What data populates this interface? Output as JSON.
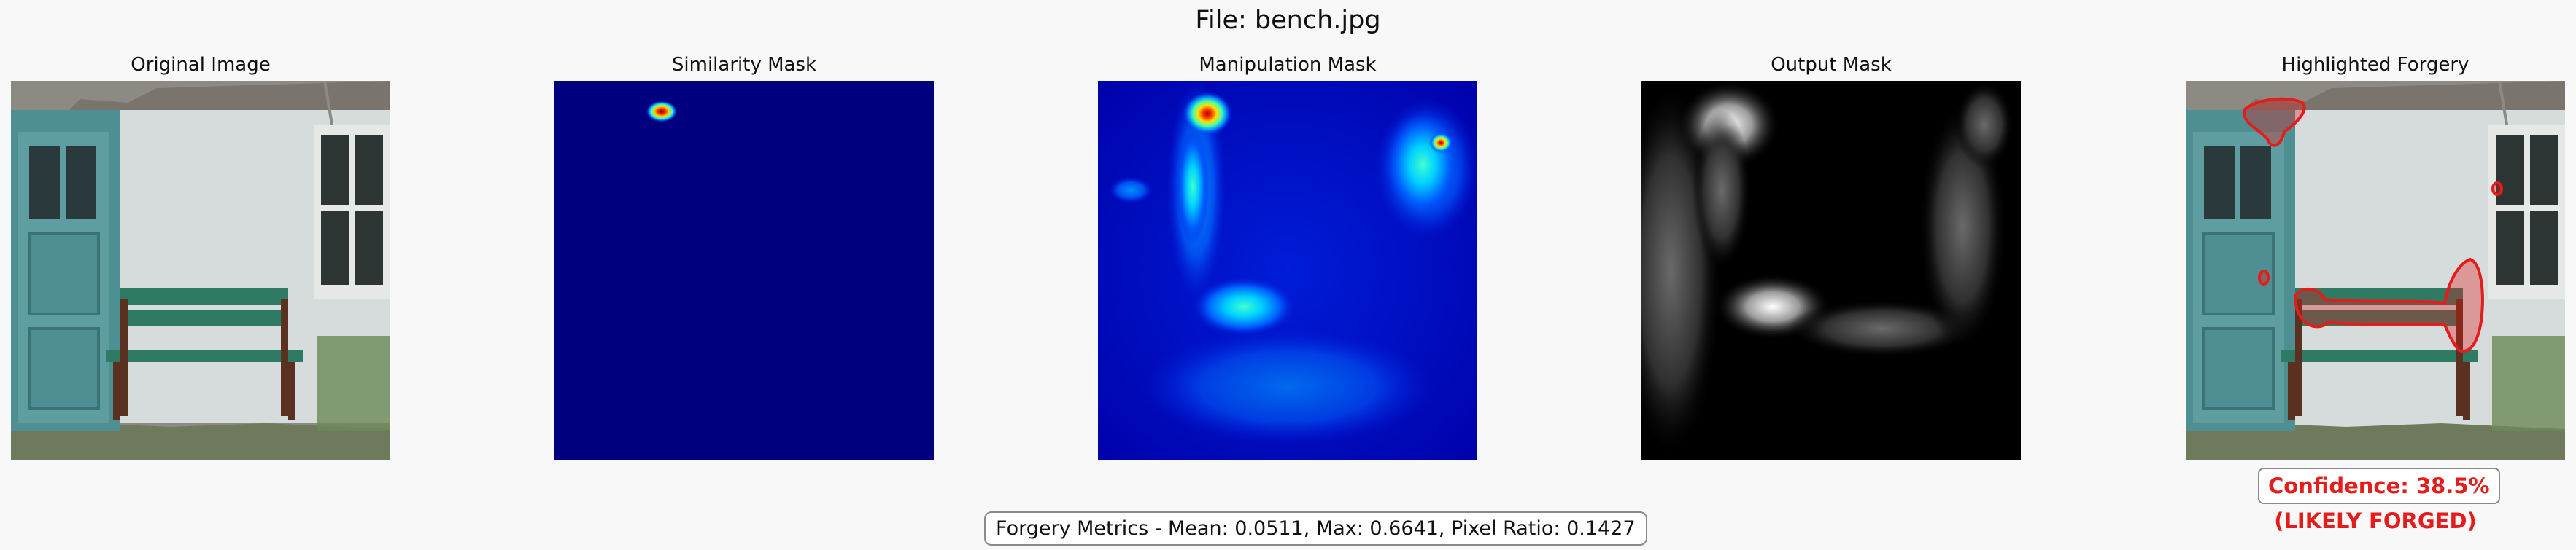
{
  "figure": {
    "title": "File: bench.jpg"
  },
  "panels": [
    {
      "title": "Original Image"
    },
    {
      "title": "Similarity Mask"
    },
    {
      "title": "Manipulation Mask"
    },
    {
      "title": "Output Mask"
    },
    {
      "title": "Highlighted Forgery"
    }
  ],
  "result": {
    "confidence": "Confidence: 38.5%",
    "verdict": "(LIKELY FORGED)"
  },
  "metrics": {
    "text": "Forgery Metrics - Mean: 0.0511, Max: 0.6641, Pixel Ratio: 0.1427"
  },
  "colors": {
    "background": "#f8f8f8",
    "alert_red": "#e31c1c",
    "jet_low": "#00007f",
    "wall": "#d6dbdc",
    "door_teal": "#5e9da0",
    "bench_green": "#2f7a63"
  }
}
